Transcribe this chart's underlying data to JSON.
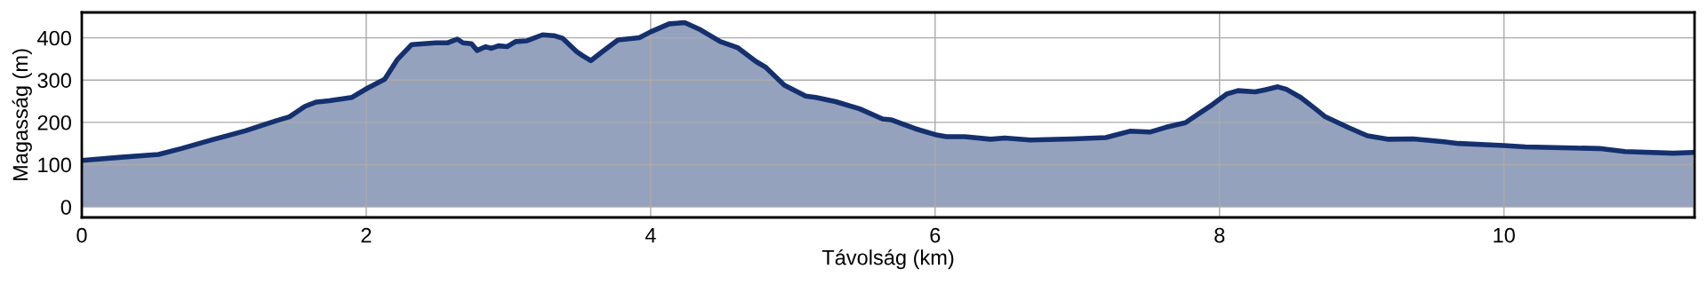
{
  "chart_data": {
    "type": "area",
    "xlabel": "Távolság (km)",
    "ylabel": "Magasság (m)",
    "xlim": [
      0,
      11.34
    ],
    "xticks": [
      0,
      2,
      4,
      6,
      8,
      10
    ],
    "ylim": [
      -25,
      460
    ],
    "yticks": [
      0,
      100,
      200,
      300,
      400
    ],
    "grid": true,
    "series": [
      {
        "color": "#14306e",
        "x": [
          0,
          0.26,
          0.54,
          0.7,
          0.93,
          1.15,
          1.37,
          1.46,
          1.57,
          1.65,
          1.74,
          1.9,
          2.01,
          2.13,
          2.22,
          2.32,
          2.49,
          2.57,
          2.64,
          2.68,
          2.74,
          2.78,
          2.84,
          2.88,
          2.93,
          2.99,
          3.05,
          3.13,
          3.24,
          3.32,
          3.38,
          3.48,
          3.52,
          3.58,
          3.66,
          3.77,
          3.92,
          4.0,
          4.13,
          4.24,
          4.35,
          4.49,
          4.61,
          4.74,
          4.81,
          4.94,
          5.09,
          5.16,
          5.3,
          5.47,
          5.63,
          5.69,
          5.86,
          6.0,
          6.08,
          6.21,
          6.39,
          6.49,
          6.67,
          6.97,
          7.2,
          7.37,
          7.51,
          7.62,
          7.76,
          7.87,
          7.95,
          8.05,
          8.13,
          8.25,
          8.32,
          8.41,
          8.47,
          8.57,
          8.67,
          8.74,
          8.91,
          9.04,
          9.19,
          9.36,
          9.58,
          9.68,
          10.0,
          10.15,
          10.67,
          10.85,
          11.19,
          11.33
        ],
        "values": [
          110,
          117,
          124,
          138,
          160,
          180,
          204,
          213,
          238,
          248,
          251,
          259,
          281,
          302,
          349,
          384,
          388,
          388,
          397,
          388,
          386,
          370,
          379,
          375,
          381,
          379,
          391,
          393,
          407,
          405,
          399,
          367,
          358,
          346,
          367,
          395,
          400,
          414,
          433,
          436,
          419,
          391,
          377,
          344,
          330,
          288,
          262,
          259,
          249,
          232,
          208,
          206,
          185,
          171,
          166,
          166,
          160,
          163,
          158,
          161,
          164,
          179,
          177,
          188,
          199,
          224,
          242,
          267,
          275,
          272,
          277,
          284,
          278,
          259,
          233,
          214,
          187,
          168,
          160,
          161,
          154,
          150,
          145,
          142,
          138,
          131,
          127,
          129
        ]
      }
    ]
  }
}
